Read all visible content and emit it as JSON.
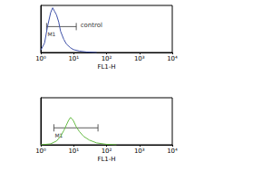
{
  "chart_data": [
    {
      "type": "line",
      "x": [
        1,
        1.3,
        1.6,
        2,
        2.3,
        2.6,
        3,
        3.5,
        4,
        5,
        6,
        8,
        10,
        15,
        25,
        50
      ],
      "values": [
        5,
        20,
        55,
        85,
        95,
        88,
        80,
        65,
        45,
        28,
        18,
        10,
        6,
        3,
        1,
        0
      ],
      "color": "#3f51a8",
      "log": "x",
      "xlim": [
        1,
        10000
      ],
      "xticks": [
        {
          "value": 1,
          "label": "10⁰"
        },
        {
          "value": 10,
          "label": "10¹"
        },
        {
          "value": 100,
          "label": "10²"
        },
        {
          "value": 1000,
          "label": "10³"
        },
        {
          "value": 10000,
          "label": "10⁴"
        }
      ],
      "ylim": [
        0,
        100
      ],
      "tick_labels": "x",
      "x_label": "FL1-H",
      "markers": [
        {
          "label": "M1",
          "x": [
            1.5,
            12
          ],
          "y": 55
        }
      ],
      "annotations": [
        {
          "text": "control",
          "x": 16,
          "y": 58
        }
      ]
    },
    {
      "type": "line",
      "x": [
        1,
        2,
        3,
        4,
        5,
        6,
        7,
        8,
        9,
        10,
        12,
        15,
        20,
        30,
        50,
        100,
        200
      ],
      "values": [
        0,
        2,
        8,
        18,
        30,
        42,
        52,
        58,
        55,
        50,
        38,
        28,
        18,
        10,
        4,
        1,
        0
      ],
      "color": "#66bb44",
      "log": "x",
      "xlim": [
        1,
        10000
      ],
      "xticks": [
        {
          "value": 1,
          "label": "10⁰"
        },
        {
          "value": 10,
          "label": "10¹"
        },
        {
          "value": 100,
          "label": "10²"
        },
        {
          "value": 1000,
          "label": "10³"
        },
        {
          "value": 10000,
          "label": "10⁴"
        }
      ],
      "ylim": [
        0,
        100
      ],
      "tick_labels": "x",
      "x_label": "FL1-H",
      "markers": [
        {
          "label": "M1",
          "x": [
            2.5,
            55
          ],
          "y": 36
        }
      ],
      "annotations": []
    }
  ]
}
